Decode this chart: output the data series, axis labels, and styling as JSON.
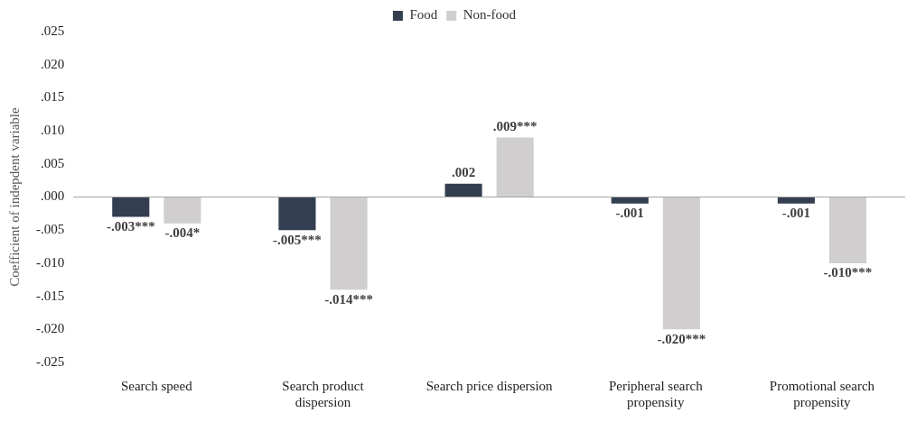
{
  "chart_data": {
    "type": "bar",
    "ylabel": "Coefficient of indepdent variable",
    "categories": [
      "Search speed",
      "Search product dispersion",
      "Search price dispersion",
      "Peripheral search propensity",
      "Promotional search propensity"
    ],
    "series": [
      {
        "name": "Food",
        "color": "#333f50",
        "values": [
          -0.003,
          -0.005,
          0.002,
          -0.001,
          -0.001
        ],
        "value_labels": [
          "-.003***",
          "-.005***",
          ".002",
          "-.001",
          "-.001"
        ]
      },
      {
        "name": "Non-food",
        "color": "#d0cece",
        "values": [
          -0.004,
          -0.014,
          0.009,
          -0.02,
          -0.01
        ],
        "value_labels": [
          "-.004*",
          "-.014***",
          ".009***",
          "-.020***",
          "-.010***"
        ]
      }
    ],
    "ylim": [
      -0.025,
      0.025
    ],
    "yticks": [
      {
        "value": -0.025,
        "label": "-.025"
      },
      {
        "value": -0.02,
        "label": "-.020"
      },
      {
        "value": -0.015,
        "label": "-.015"
      },
      {
        "value": -0.01,
        "label": "-.010"
      },
      {
        "value": -0.005,
        "label": "-.005"
      },
      {
        "value": 0,
        "label": ".000"
      },
      {
        "value": 0.005,
        "label": ".005"
      },
      {
        "value": 0.01,
        "label": ".010"
      },
      {
        "value": 0.015,
        "label": ".015"
      },
      {
        "value": 0.02,
        "label": ".020"
      },
      {
        "value": 0.025,
        "label": ".025"
      }
    ],
    "ref_lines": [
      {
        "axis": "y",
        "value": 0,
        "color": "#a6a6a6"
      }
    ],
    "grid": false,
    "legend": "top"
  }
}
